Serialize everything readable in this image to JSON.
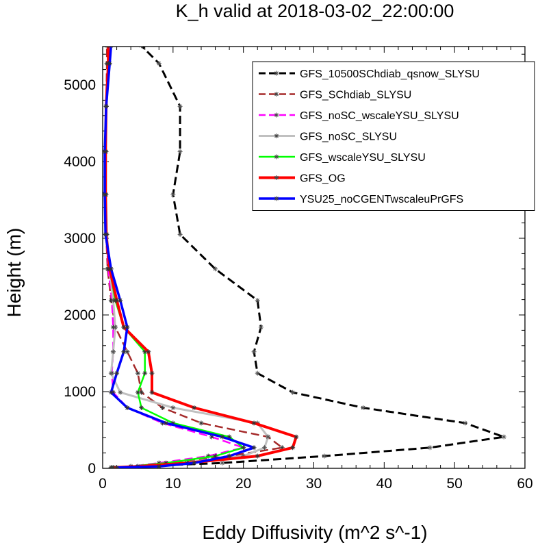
{
  "chart_data": {
    "type": "line",
    "title": "K_h valid at 2018-03-02_22:00:00",
    "xlabel": "Eddy Diffusivity (m^2 s^-1)",
    "ylabel": "Height (m)",
    "xlim": [
      0,
      60
    ],
    "ylim": [
      0,
      5500
    ],
    "xticks": [
      0,
      10,
      20,
      30,
      40,
      50,
      60
    ],
    "yticks": [
      0,
      1000,
      2000,
      3000,
      4000,
      5000
    ],
    "grid": false,
    "legend_position": "top-right",
    "series": [
      {
        "name": "GFS_10500SChdiab_qsnow_SLYSU",
        "color": "#000000",
        "dash": "dashed",
        "width": 3,
        "x": [
          1.5,
          5,
          17,
          31.5,
          46.5,
          57,
          51.5,
          37,
          27,
          22,
          21.5,
          22.5,
          22,
          16,
          11,
          10,
          11,
          11,
          8,
          5.5
        ],
        "y": [
          10,
          25,
          70,
          160,
          270,
          410,
          590,
          790,
          990,
          1240,
          1520,
          1840,
          2190,
          2600,
          3050,
          3570,
          4130,
          4720,
          5280,
          5510
        ]
      },
      {
        "name": "GFS_SChdiab_SLYSU",
        "color": "#a52a2a",
        "dash": "dashed",
        "width": 2.5,
        "x": [
          1.5,
          5,
          10,
          18,
          25.5,
          23.5,
          14,
          8.5,
          5.5,
          5,
          3.5,
          1.8,
          1.2,
          0.7,
          0.5,
          0.4,
          0.4,
          0.5,
          0.6,
          0.6
        ],
        "y": [
          10,
          25,
          70,
          160,
          270,
          410,
          590,
          790,
          990,
          1240,
          1520,
          1840,
          2190,
          2600,
          3050,
          3570,
          4130,
          4720,
          5280,
          5510
        ]
      },
      {
        "name": "GFS_noSC_wscaleYSU_SLYSU",
        "color": "#ff00ff",
        "dash": "dashed",
        "width": 2.5,
        "x": [
          1.2,
          4,
          8,
          15,
          20,
          15.5,
          8.5,
          3.5,
          1.5,
          1.3,
          1.5,
          1.5,
          1.3,
          0.8,
          0.5,
          0.4,
          0.4,
          0.5,
          0.8,
          0.8
        ],
        "y": [
          10,
          25,
          70,
          160,
          270,
          410,
          590,
          790,
          990,
          1240,
          1520,
          1840,
          2190,
          2600,
          3050,
          3570,
          4130,
          4720,
          5280,
          5510
        ]
      },
      {
        "name": "GFS_noSC_SLYSU",
        "color": "#c0c0c0",
        "dash": "solid",
        "width": 3,
        "x": [
          1.2,
          5,
          11,
          20,
          23,
          23.5,
          22,
          10,
          2.5,
          1.2,
          1.5,
          1.8,
          1.5,
          1,
          0.6,
          0.5,
          0.5,
          0.5,
          0.8,
          0.8
        ],
        "y": [
          10,
          25,
          70,
          160,
          270,
          410,
          590,
          790,
          990,
          1240,
          1520,
          1840,
          2190,
          2600,
          3050,
          3570,
          4130,
          4720,
          5280,
          5510
        ]
      },
      {
        "name": "GFS_wscaleYSU_SLYSU",
        "color": "#00ff00",
        "dash": "solid",
        "width": 2.5,
        "x": [
          1.2,
          4,
          9,
          16,
          20,
          18,
          10,
          5.5,
          5,
          6,
          6,
          3,
          1.8,
          1,
          0.5,
          0.4,
          0.4,
          0.5,
          0.8,
          0.8
        ],
        "y": [
          10,
          25,
          70,
          160,
          270,
          410,
          590,
          790,
          990,
          1240,
          1520,
          1840,
          2190,
          2600,
          3050,
          3570,
          4130,
          4720,
          5280,
          5510
        ]
      },
      {
        "name": "GFS_OG",
        "color": "#ff0000",
        "dash": "solid",
        "width": 4,
        "x": [
          1.5,
          5,
          12,
          22,
          27,
          27.5,
          21.5,
          13,
          7,
          7,
          6.5,
          3,
          2,
          1,
          0.5,
          0.4,
          0.4,
          0.5,
          0.8,
          0.8
        ],
        "y": [
          10,
          25,
          70,
          160,
          270,
          410,
          590,
          790,
          990,
          1240,
          1520,
          1840,
          2190,
          2600,
          3050,
          3570,
          4130,
          4720,
          5280,
          5510
        ]
      },
      {
        "name": "YSU25_noCGENTwscaleuPrGFS",
        "color": "#0000ff",
        "dash": "solid",
        "width": 3.5,
        "x": [
          2,
          8,
          13,
          18,
          21.5,
          17,
          9,
          3.5,
          1.2,
          2,
          3,
          3.5,
          2.5,
          1.2,
          0.4,
          0.3,
          0.3,
          0.5,
          1,
          1.2
        ],
        "y": [
          10,
          25,
          70,
          160,
          270,
          410,
          590,
          790,
          990,
          1240,
          1520,
          1840,
          2190,
          2600,
          3050,
          3570,
          4130,
          4720,
          5280,
          5510
        ]
      }
    ]
  }
}
